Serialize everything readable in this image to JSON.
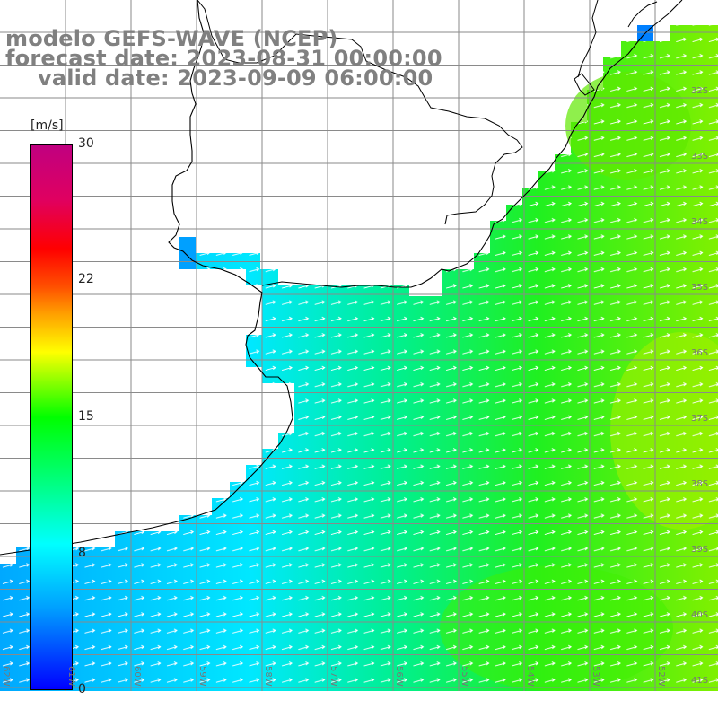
{
  "title": {
    "line1": "modelo GEFS-WAVE (NCEP)",
    "line2": "forecast date: 2023-08-31 00:00:00",
    "line3": "valid date: 2023-09-09 06:00:00"
  },
  "colorbar": {
    "unit": "[m/s]",
    "ticks": [
      "30",
      "22",
      "15",
      "8",
      "0"
    ],
    "colors": [
      "#0000ff",
      "#00a0ff",
      "#00ffff",
      "#00ff00",
      "#ffff00",
      "#ff0000",
      "#c00080"
    ]
  },
  "lon_labels": [
    "62W",
    "61W",
    "60W",
    "59W",
    "58W",
    "57W",
    "56W",
    "55W",
    "54W",
    "53W",
    "52W"
  ],
  "lat_labels": [
    "32S",
    "33S",
    "34S",
    "35S",
    "36S",
    "37S",
    "38S",
    "39S",
    "40S",
    "41S"
  ],
  "colors": {
    "land": "#ffffff",
    "coast": "#000000",
    "grid": "#8a8a8a",
    "arrow": "#ffffff",
    "title": "#808080"
  }
}
